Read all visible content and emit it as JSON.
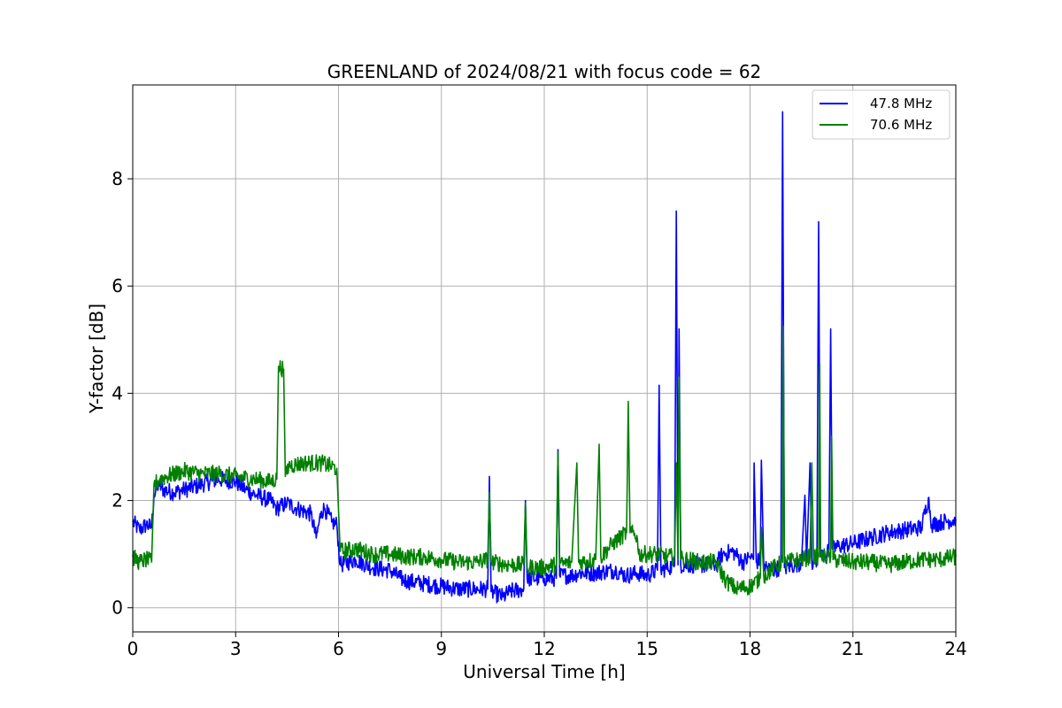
{
  "chart_data": {
    "type": "line",
    "title": "GREENLAND of 2024/08/21 with focus code = 62",
    "xlabel": "Universal Time [h]",
    "ylabel": "Y-factor [dB]",
    "xlim": [
      0,
      24
    ],
    "ylim": [
      -0.45,
      9.75
    ],
    "xticks": [
      0,
      3,
      6,
      9,
      12,
      15,
      18,
      21,
      24
    ],
    "yticks": [
      0,
      2,
      4,
      6,
      8
    ],
    "grid": true,
    "legend_position": "top-right",
    "series": [
      {
        "name": "47.8 MHz",
        "color": "#0000ff",
        "points": [
          [
            0.0,
            1.6
          ],
          [
            0.2,
            1.45
          ],
          [
            0.4,
            1.55
          ],
          [
            0.55,
            1.5
          ],
          [
            0.62,
            2.1
          ],
          [
            0.75,
            2.3
          ],
          [
            0.9,
            2.2
          ],
          [
            1.2,
            2.15
          ],
          [
            1.5,
            2.2
          ],
          [
            2.0,
            2.3
          ],
          [
            2.5,
            2.4
          ],
          [
            3.0,
            2.35
          ],
          [
            3.3,
            2.2
          ],
          [
            3.6,
            2.1
          ],
          [
            3.8,
            2.05
          ],
          [
            4.0,
            2.0
          ],
          [
            4.2,
            1.85
          ],
          [
            4.5,
            1.95
          ],
          [
            4.8,
            1.85
          ],
          [
            5.2,
            1.75
          ],
          [
            5.35,
            1.3
          ],
          [
            5.5,
            1.8
          ],
          [
            5.6,
            1.85
          ],
          [
            5.8,
            1.6
          ],
          [
            5.95,
            1.55
          ],
          [
            6.05,
            0.8
          ],
          [
            6.5,
            0.9
          ],
          [
            7.0,
            0.75
          ],
          [
            7.5,
            0.7
          ],
          [
            7.8,
            0.55
          ],
          [
            8.0,
            0.5
          ],
          [
            8.5,
            0.45
          ],
          [
            9.0,
            0.4
          ],
          [
            9.5,
            0.35
          ],
          [
            10.0,
            0.35
          ],
          [
            10.35,
            0.35
          ],
          [
            10.4,
            2.45
          ],
          [
            10.45,
            0.3
          ],
          [
            10.8,
            0.2
          ],
          [
            11.0,
            0.3
          ],
          [
            11.4,
            0.35
          ],
          [
            11.45,
            2.0
          ],
          [
            11.5,
            0.55
          ],
          [
            12.0,
            0.55
          ],
          [
            12.35,
            0.55
          ],
          [
            12.4,
            2.95
          ],
          [
            12.45,
            0.6
          ],
          [
            12.8,
            0.6
          ],
          [
            13.0,
            0.65
          ],
          [
            13.5,
            0.65
          ],
          [
            13.8,
            0.68
          ],
          [
            14.1,
            0.7
          ],
          [
            14.2,
            0.65
          ],
          [
            14.4,
            0.6
          ],
          [
            14.7,
            0.65
          ],
          [
            15.0,
            0.6
          ],
          [
            15.3,
            0.7
          ],
          [
            15.35,
            4.15
          ],
          [
            15.4,
            0.7
          ],
          [
            15.6,
            0.75
          ],
          [
            15.8,
            0.8
          ],
          [
            15.85,
            7.4
          ],
          [
            15.9,
            0.8
          ],
          [
            15.93,
            5.2
          ],
          [
            15.98,
            0.8
          ],
          [
            16.5,
            0.8
          ],
          [
            17.0,
            0.8
          ],
          [
            17.2,
            1.0
          ],
          [
            17.5,
            1.05
          ],
          [
            17.8,
            0.85
          ],
          [
            18.0,
            0.95
          ],
          [
            18.1,
            0.9
          ],
          [
            18.12,
            2.7
          ],
          [
            18.18,
            0.85
          ],
          [
            18.3,
            0.9
          ],
          [
            18.33,
            2.75
          ],
          [
            18.4,
            0.8
          ],
          [
            18.6,
            0.7
          ],
          [
            18.9,
            0.75
          ],
          [
            18.95,
            9.25
          ],
          [
            19.0,
            0.75
          ],
          [
            19.3,
            0.8
          ],
          [
            19.5,
            0.85
          ],
          [
            19.6,
            2.1
          ],
          [
            19.65,
            0.85
          ],
          [
            19.75,
            2.7
          ],
          [
            19.8,
            0.85
          ],
          [
            19.95,
            0.9
          ],
          [
            20.0,
            7.2
          ],
          [
            20.05,
            0.95
          ],
          [
            20.3,
            1.05
          ],
          [
            20.35,
            5.2
          ],
          [
            20.4,
            1.1
          ],
          [
            20.6,
            1.15
          ],
          [
            21.0,
            1.2
          ],
          [
            21.5,
            1.3
          ],
          [
            22.0,
            1.4
          ],
          [
            22.5,
            1.45
          ],
          [
            23.0,
            1.5
          ],
          [
            23.2,
            2.05
          ],
          [
            23.3,
            1.55
          ],
          [
            23.6,
            1.6
          ],
          [
            24.0,
            1.65
          ]
        ]
      },
      {
        "name": "70.6 MHz",
        "color": "#008000",
        "points": [
          [
            0.0,
            0.95
          ],
          [
            0.2,
            0.85
          ],
          [
            0.4,
            0.9
          ],
          [
            0.55,
            0.85
          ],
          [
            0.62,
            2.3
          ],
          [
            0.8,
            2.4
          ],
          [
            1.0,
            2.45
          ],
          [
            1.5,
            2.55
          ],
          [
            2.0,
            2.5
          ],
          [
            2.5,
            2.5
          ],
          [
            3.0,
            2.45
          ],
          [
            3.5,
            2.4
          ],
          [
            4.0,
            2.35
          ],
          [
            4.2,
            2.4
          ],
          [
            4.25,
            4.5
          ],
          [
            4.4,
            4.45
          ],
          [
            4.45,
            2.45
          ],
          [
            4.55,
            2.65
          ],
          [
            5.0,
            2.7
          ],
          [
            5.5,
            2.7
          ],
          [
            5.95,
            2.6
          ],
          [
            6.05,
            1.05
          ],
          [
            6.5,
            1.1
          ],
          [
            7.0,
            1.0
          ],
          [
            7.5,
            1.0
          ],
          [
            8.0,
            0.95
          ],
          [
            8.5,
            0.95
          ],
          [
            9.0,
            0.9
          ],
          [
            9.5,
            0.85
          ],
          [
            10.0,
            0.85
          ],
          [
            10.35,
            0.9
          ],
          [
            10.4,
            2.15
          ],
          [
            10.45,
            0.85
          ],
          [
            11.0,
            0.8
          ],
          [
            11.4,
            0.8
          ],
          [
            11.45,
            1.95
          ],
          [
            11.5,
            0.75
          ],
          [
            12.0,
            0.75
          ],
          [
            12.35,
            0.8
          ],
          [
            12.4,
            2.9
          ],
          [
            12.45,
            0.8
          ],
          [
            12.8,
            0.85
          ],
          [
            12.95,
            2.7
          ],
          [
            13.0,
            0.85
          ],
          [
            13.5,
            0.9
          ],
          [
            13.6,
            3.05
          ],
          [
            13.65,
            0.95
          ],
          [
            14.0,
            1.2
          ],
          [
            14.2,
            1.3
          ],
          [
            14.4,
            1.4
          ],
          [
            14.45,
            3.85
          ],
          [
            14.5,
            1.4
          ],
          [
            14.7,
            1.35
          ],
          [
            14.75,
            1.0
          ],
          [
            15.0,
            1.0
          ],
          [
            15.3,
            1.0
          ],
          [
            15.6,
            0.95
          ],
          [
            15.8,
            0.95
          ],
          [
            15.85,
            2.7
          ],
          [
            15.9,
            0.9
          ],
          [
            15.93,
            4.3
          ],
          [
            15.98,
            0.9
          ],
          [
            16.2,
            0.9
          ],
          [
            16.5,
            0.85
          ],
          [
            17.0,
            0.85
          ],
          [
            17.3,
            0.5
          ],
          [
            17.6,
            0.35
          ],
          [
            18.0,
            0.4
          ],
          [
            18.3,
            0.55
          ],
          [
            18.33,
            1.5
          ],
          [
            18.4,
            0.6
          ],
          [
            18.7,
            0.75
          ],
          [
            18.95,
            0.85
          ],
          [
            18.97,
            5.25
          ],
          [
            19.0,
            0.85
          ],
          [
            19.5,
            0.9
          ],
          [
            19.75,
            0.95
          ],
          [
            19.8,
            2.7
          ],
          [
            19.85,
            0.95
          ],
          [
            20.0,
            0.95
          ],
          [
            20.03,
            4.55
          ],
          [
            20.06,
            0.95
          ],
          [
            20.35,
            0.95
          ],
          [
            20.38,
            3.2
          ],
          [
            20.42,
            0.9
          ],
          [
            21.0,
            0.85
          ],
          [
            21.5,
            0.85
          ],
          [
            22.0,
            0.8
          ],
          [
            22.5,
            0.85
          ],
          [
            23.0,
            0.9
          ],
          [
            23.5,
            0.9
          ],
          [
            24.0,
            0.95
          ]
        ]
      }
    ]
  }
}
